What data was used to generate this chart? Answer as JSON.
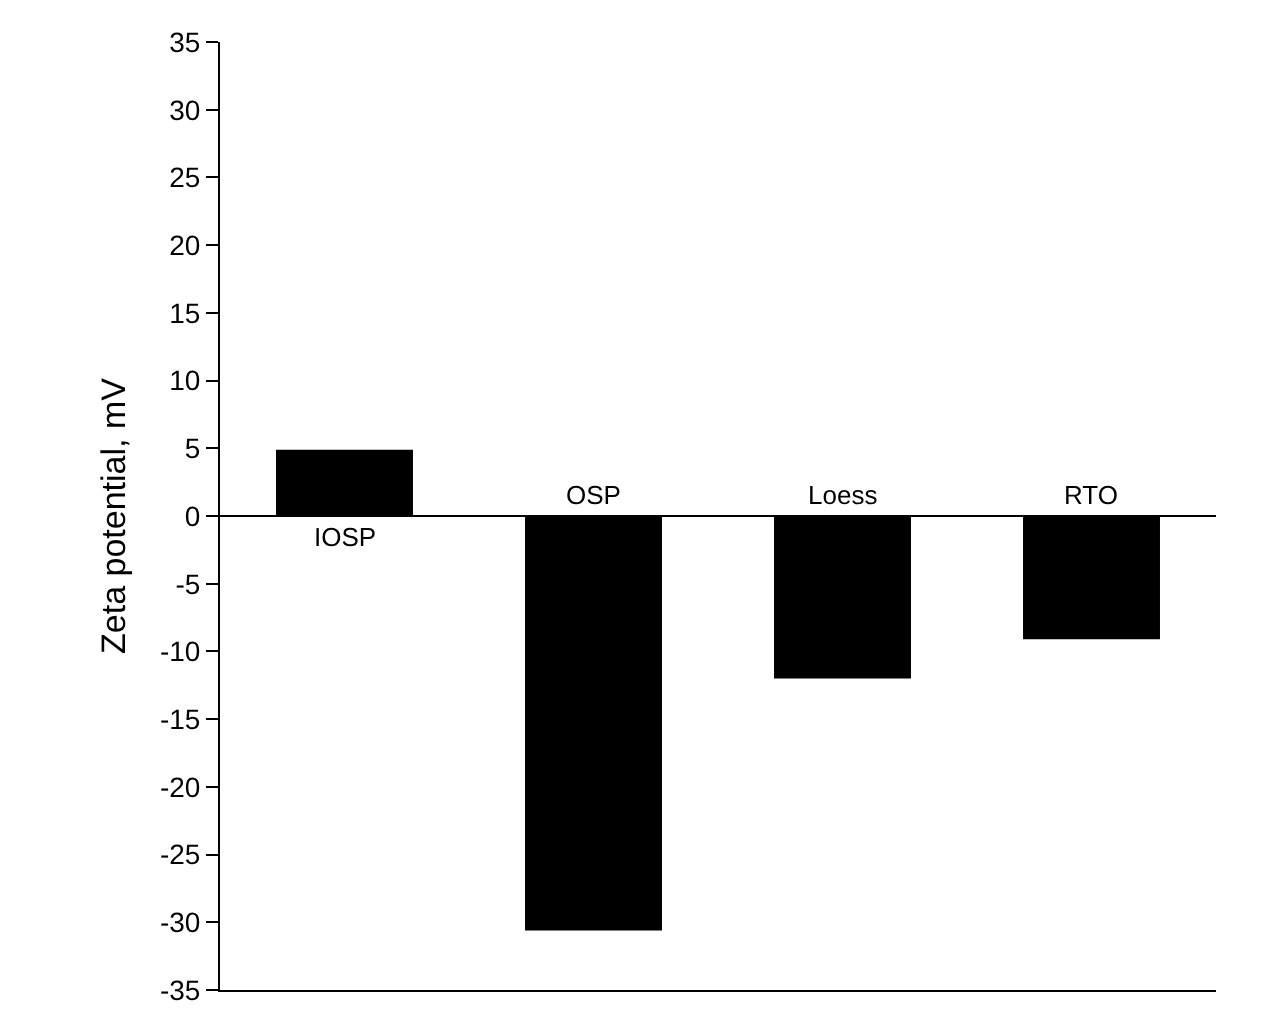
{
  "chart_data": {
    "type": "bar",
    "ylabel": "Zeta potential, mV",
    "categories": [
      "IOSP",
      "OSP",
      "Loess",
      "RTO"
    ],
    "values": [
      4.9,
      -30.6,
      -12,
      -9.1
    ],
    "color": "#000000",
    "ylim": [
      -35,
      35
    ],
    "yticks": [
      -35,
      -30,
      -25,
      -20,
      -15,
      -10,
      -5,
      0,
      5,
      10,
      15,
      20,
      25,
      30,
      35
    ],
    "grid": false,
    "tick_labels": "y"
  }
}
